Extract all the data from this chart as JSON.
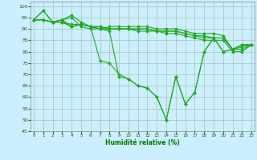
{
  "xlabel": "Humidité relative (%)",
  "background_color": "#cceeff",
  "grid_color": "#aaccbb",
  "line_color": "#22aa22",
  "ylim": [
    45,
    102
  ],
  "xlim": [
    -0.3,
    23.3
  ],
  "yticks": [
    45,
    50,
    55,
    60,
    65,
    70,
    75,
    80,
    85,
    90,
    95,
    100
  ],
  "xticks": [
    0,
    1,
    2,
    3,
    4,
    5,
    6,
    7,
    8,
    9,
    10,
    11,
    12,
    13,
    14,
    15,
    16,
    17,
    18,
    19,
    20,
    21,
    22,
    23
  ],
  "series": [
    [
      94,
      98,
      93,
      94,
      95,
      91,
      90,
      90,
      91,
      91,
      91,
      91,
      91,
      90,
      90,
      90,
      89,
      88,
      88,
      88,
      87,
      81,
      83,
      83
    ],
    [
      94,
      98,
      93,
      94,
      96,
      93,
      91,
      90,
      90,
      90,
      90,
      90,
      90,
      89,
      89,
      89,
      88,
      87,
      87,
      86,
      86,
      81,
      82,
      83
    ],
    [
      94,
      94,
      93,
      94,
      91,
      92,
      91,
      91,
      90,
      90,
      90,
      90,
      90,
      89,
      89,
      89,
      88,
      87,
      86,
      86,
      86,
      81,
      81,
      83
    ],
    [
      94,
      94,
      93,
      93,
      92,
      92,
      91,
      91,
      90,
      90,
      90,
      89,
      89,
      89,
      88,
      88,
      87,
      86,
      85,
      85,
      85,
      80,
      80,
      83
    ],
    [
      94,
      94,
      93,
      93,
      91,
      92,
      91,
      90,
      89,
      69,
      68,
      65,
      64,
      60,
      50,
      69,
      57,
      62,
      80,
      86,
      80,
      81,
      83,
      83
    ],
    [
      94,
      94,
      93,
      93,
      91,
      92,
      91,
      76,
      75,
      70,
      68,
      65,
      64,
      60,
      50,
      69,
      57,
      62,
      80,
      86,
      80,
      81,
      83,
      83
    ]
  ]
}
